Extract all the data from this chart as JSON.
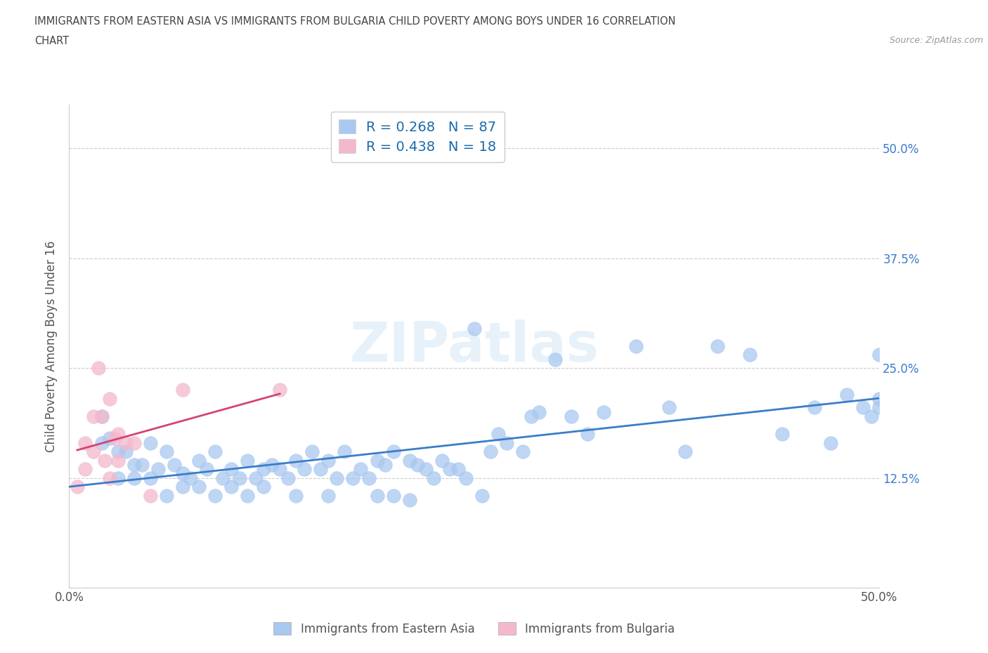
{
  "title_line1": "IMMIGRANTS FROM EASTERN ASIA VS IMMIGRANTS FROM BULGARIA CHILD POVERTY AMONG BOYS UNDER 16 CORRELATION",
  "title_line2": "CHART",
  "source": "Source: ZipAtlas.com",
  "ylabel": "Child Poverty Among Boys Under 16",
  "xlim": [
    0.0,
    0.5
  ],
  "ylim": [
    0.0,
    0.55
  ],
  "xticks": [
    0.0,
    0.125,
    0.25,
    0.375,
    0.5
  ],
  "xticklabels": [
    "0.0%",
    "",
    "",
    "",
    "50.0%"
  ],
  "yticks": [
    0.0,
    0.125,
    0.25,
    0.375,
    0.5
  ],
  "yticklabels": [
    "",
    "12.5%",
    "25.0%",
    "37.5%",
    "50.0%"
  ],
  "R_eastern_asia": 0.268,
  "N_eastern_asia": 87,
  "R_bulgaria": 0.438,
  "N_bulgaria": 18,
  "color_eastern_asia": "#a8c8f0",
  "color_bulgaria": "#f4b8cc",
  "trendline_color_eastern_asia": "#3a7dc9",
  "trendline_color_bulgaria": "#d44472",
  "background_color": "#ffffff",
  "watermark": "ZIPatlas",
  "eastern_asia_x": [
    0.02,
    0.02,
    0.025,
    0.03,
    0.03,
    0.035,
    0.04,
    0.04,
    0.045,
    0.05,
    0.05,
    0.055,
    0.06,
    0.06,
    0.065,
    0.07,
    0.07,
    0.075,
    0.08,
    0.08,
    0.085,
    0.09,
    0.09,
    0.095,
    0.1,
    0.1,
    0.105,
    0.11,
    0.11,
    0.115,
    0.12,
    0.12,
    0.125,
    0.13,
    0.135,
    0.14,
    0.14,
    0.145,
    0.15,
    0.155,
    0.16,
    0.16,
    0.165,
    0.17,
    0.175,
    0.18,
    0.185,
    0.19,
    0.19,
    0.195,
    0.2,
    0.2,
    0.21,
    0.21,
    0.215,
    0.22,
    0.225,
    0.23,
    0.235,
    0.24,
    0.245,
    0.25,
    0.255,
    0.26,
    0.265,
    0.27,
    0.28,
    0.285,
    0.29,
    0.3,
    0.31,
    0.32,
    0.33,
    0.35,
    0.37,
    0.38,
    0.4,
    0.42,
    0.44,
    0.46,
    0.47,
    0.48,
    0.49,
    0.495,
    0.5,
    0.5,
    0.5
  ],
  "eastern_asia_y": [
    0.195,
    0.165,
    0.17,
    0.155,
    0.125,
    0.155,
    0.14,
    0.125,
    0.14,
    0.165,
    0.125,
    0.135,
    0.155,
    0.105,
    0.14,
    0.13,
    0.115,
    0.125,
    0.145,
    0.115,
    0.135,
    0.155,
    0.105,
    0.125,
    0.135,
    0.115,
    0.125,
    0.145,
    0.105,
    0.125,
    0.135,
    0.115,
    0.14,
    0.135,
    0.125,
    0.145,
    0.105,
    0.135,
    0.155,
    0.135,
    0.145,
    0.105,
    0.125,
    0.155,
    0.125,
    0.135,
    0.125,
    0.145,
    0.105,
    0.14,
    0.155,
    0.105,
    0.145,
    0.1,
    0.14,
    0.135,
    0.125,
    0.145,
    0.135,
    0.135,
    0.125,
    0.295,
    0.105,
    0.155,
    0.175,
    0.165,
    0.155,
    0.195,
    0.2,
    0.26,
    0.195,
    0.175,
    0.2,
    0.275,
    0.205,
    0.155,
    0.275,
    0.265,
    0.175,
    0.205,
    0.165,
    0.22,
    0.205,
    0.195,
    0.215,
    0.265,
    0.205
  ],
  "bulgaria_x": [
    0.005,
    0.01,
    0.01,
    0.015,
    0.015,
    0.018,
    0.02,
    0.022,
    0.025,
    0.025,
    0.028,
    0.03,
    0.03,
    0.035,
    0.04,
    0.05,
    0.07,
    0.13
  ],
  "bulgaria_y": [
    0.115,
    0.135,
    0.165,
    0.195,
    0.155,
    0.25,
    0.195,
    0.145,
    0.215,
    0.125,
    0.17,
    0.175,
    0.145,
    0.165,
    0.165,
    0.105,
    0.225,
    0.225
  ]
}
